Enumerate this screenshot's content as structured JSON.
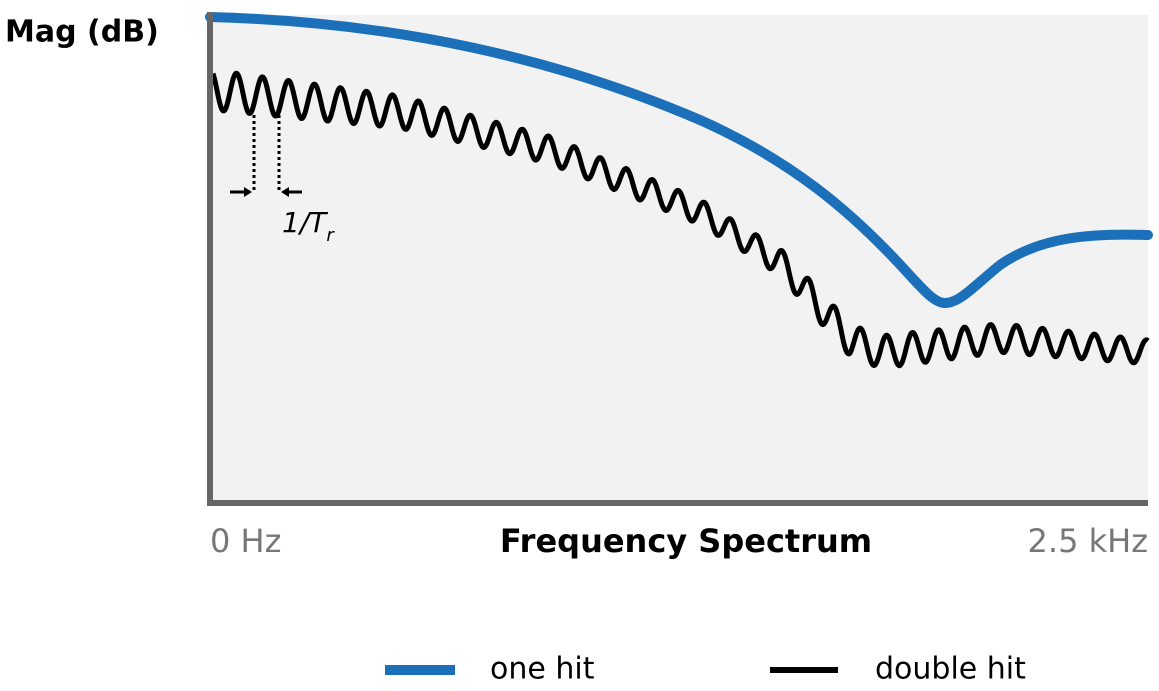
{
  "axis": {
    "y_label": "Mag (dB)",
    "x_label": "Frequency Spectrum",
    "x_start": "0 Hz",
    "x_end": "2.5 kHz"
  },
  "annotation": {
    "text": "1/T",
    "subscript": "r"
  },
  "legend": [
    {
      "label": "one hit",
      "color": "#1b70b9"
    },
    {
      "label": "double hit",
      "color": "#000000"
    }
  ]
}
